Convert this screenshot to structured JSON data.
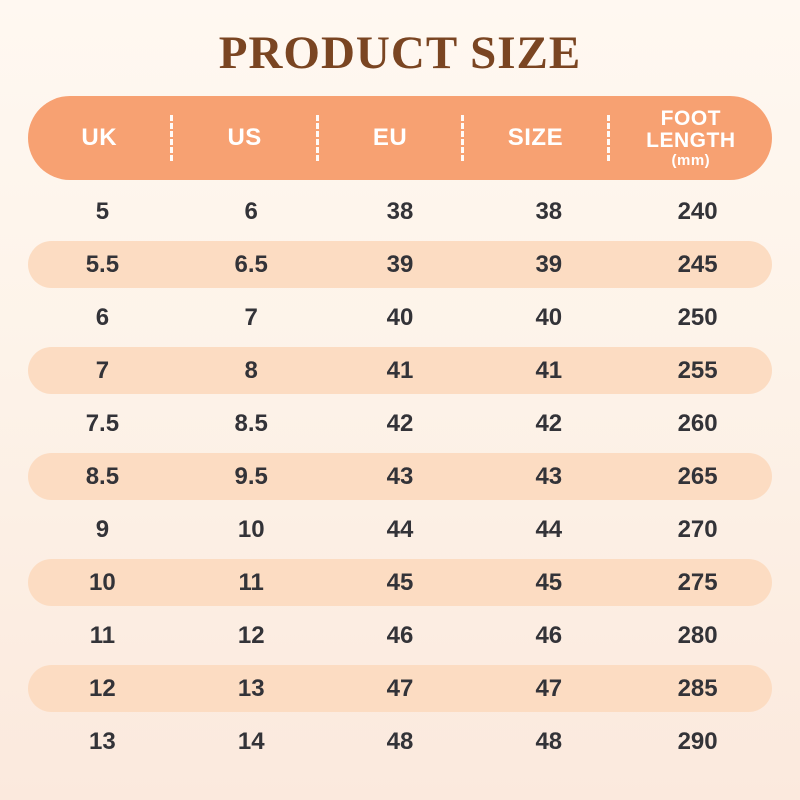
{
  "title": "PRODUCT SIZE",
  "chart_data": {
    "type": "table",
    "title": "PRODUCT SIZE",
    "columns": [
      {
        "label": "UK"
      },
      {
        "label": "US"
      },
      {
        "label": "EU"
      },
      {
        "label": "SIZE"
      },
      {
        "label": "FOOT LENGTH",
        "unit": "(mm)"
      }
    ],
    "rows": [
      [
        "5",
        "6",
        "38",
        "38",
        "240"
      ],
      [
        "5.5",
        "6.5",
        "39",
        "39",
        "245"
      ],
      [
        "6",
        "7",
        "40",
        "40",
        "250"
      ],
      [
        "7",
        "8",
        "41",
        "41",
        "255"
      ],
      [
        "7.5",
        "8.5",
        "42",
        "42",
        "260"
      ],
      [
        "8.5",
        "9.5",
        "43",
        "43",
        "265"
      ],
      [
        "9",
        "10",
        "44",
        "44",
        "270"
      ],
      [
        "10",
        "11",
        "45",
        "45",
        "275"
      ],
      [
        "11",
        "12",
        "46",
        "46",
        "280"
      ],
      [
        "12",
        "13",
        "47",
        "47",
        "285"
      ],
      [
        "13",
        "14",
        "48",
        "48",
        "290"
      ]
    ]
  },
  "colors": {
    "header_bg": "#f7a172",
    "row_alt_bg": "#fcdcc2",
    "title_color": "#7a4522",
    "cell_text": "#333338",
    "header_text": "#ffffff",
    "bg_top": "#fff8f1",
    "bg_bottom": "#fbe9dd"
  }
}
